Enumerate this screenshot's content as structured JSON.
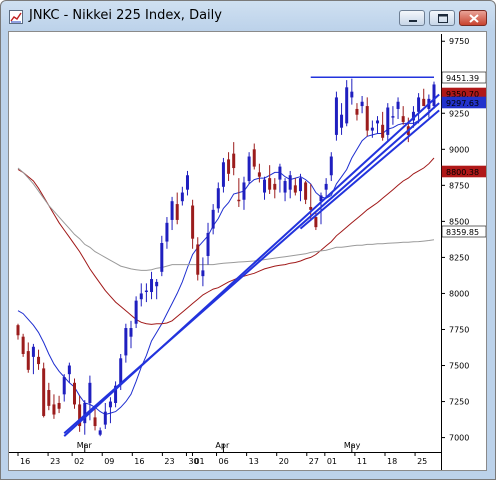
{
  "window": {
    "title": "JNKC - Nikkei 225 Index, Daily",
    "controls": [
      "minimize",
      "maximize",
      "close"
    ],
    "icons": {
      "app": "chart-app-icon"
    }
  },
  "chart_data": {
    "type": "candlestick",
    "title": "",
    "xlabel": "",
    "ylabel": "",
    "ylim": [
      6900,
      9800
    ],
    "y_ticks": [
      7000,
      7250,
      7500,
      7750,
      8000,
      8250,
      8500,
      8750,
      9000,
      9250,
      9500,
      9750
    ],
    "y_tick_labels": [
      "7000",
      "7250",
      "7500",
      "7750",
      "8000",
      "8250",
      "8500",
      "8750",
      "9000",
      "9250",
      "9500",
      "9750"
    ],
    "x_day_labels": [
      "16",
      "23",
      "02",
      "09",
      "16",
      "23",
      "30",
      "01",
      "06",
      "13",
      "20",
      "27",
      "01",
      "11",
      "18",
      "25"
    ],
    "x_month_labels": [
      {
        "label": "Mar",
        "bar": 13
      },
      {
        "label": "Apr",
        "bar": 40
      },
      {
        "label": "May",
        "bar": 65
      }
    ],
    "colors": {
      "up": "#1f1fbf",
      "down": "#9b1c1c",
      "ma_short": "#1f2fd0",
      "ma_mid": "#a01818",
      "ma_long": "#9a9a9a",
      "trend": "#2233dd",
      "resistance": "#2233dd"
    },
    "price_tags": [
      {
        "value": "9451.39",
        "bg": "#ffffff",
        "fg": "#000000"
      },
      {
        "value": "9350.70",
        "bg": "#b01818",
        "fg": "#ffffff"
      },
      {
        "value": "9297.63",
        "bg": "#2233cc",
        "fg": "#ffffff"
      },
      {
        "value": "8800.38",
        "bg": "#b01818",
        "fg": "#ffffff"
      },
      {
        "value": "8359.85",
        "bg": "#ffffff",
        "fg": "#000000"
      }
    ],
    "series": [
      {
        "name": "",
        "type": "candles",
        "ohlc": [
          [
            7780,
            7790,
            7680,
            7710
          ],
          [
            7700,
            7720,
            7560,
            7580
          ],
          [
            7600,
            7660,
            7450,
            7470
          ],
          [
            7560,
            7650,
            7440,
            7630
          ],
          [
            7560,
            7610,
            7470,
            7510
          ],
          [
            7480,
            7520,
            7140,
            7150
          ],
          [
            7330,
            7380,
            7190,
            7220
          ],
          [
            7230,
            7300,
            7130,
            7160
          ],
          [
            7240,
            7290,
            7170,
            7200
          ],
          [
            7300,
            7440,
            7250,
            7420
          ],
          [
            7440,
            7520,
            7380,
            7500
          ],
          [
            7380,
            7410,
            7200,
            7230
          ],
          [
            7230,
            7290,
            7040,
            7080
          ],
          [
            7100,
            7260,
            7020,
            7240
          ],
          [
            7240,
            7430,
            7120,
            7380
          ],
          [
            7140,
            7200,
            7050,
            7080
          ],
          [
            7020,
            7070,
            7010,
            7050
          ],
          [
            7090,
            7240,
            7060,
            7180
          ],
          [
            7210,
            7280,
            7100,
            7250
          ],
          [
            7240,
            7390,
            7210,
            7360
          ],
          [
            7370,
            7580,
            7330,
            7550
          ],
          [
            7570,
            7790,
            7520,
            7760
          ],
          [
            7700,
            7810,
            7620,
            7760
          ],
          [
            7790,
            7980,
            7760,
            7950
          ],
          [
            7960,
            8070,
            7910,
            8000
          ],
          [
            8010,
            8070,
            7940,
            8020
          ],
          [
            8010,
            8150,
            7960,
            8100
          ],
          [
            8050,
            8100,
            7960,
            8080
          ],
          [
            8150,
            8400,
            8120,
            8350
          ],
          [
            8360,
            8530,
            8310,
            8490
          ],
          [
            8510,
            8670,
            8440,
            8640
          ],
          [
            8620,
            8700,
            8480,
            8510
          ],
          [
            8640,
            8740,
            8610,
            8700
          ],
          [
            8720,
            8850,
            8680,
            8820
          ],
          [
            8610,
            8650,
            8310,
            8380
          ],
          [
            8340,
            8390,
            8090,
            8130
          ],
          [
            8120,
            8250,
            8050,
            8160
          ],
          [
            8260,
            8490,
            8200,
            8420
          ],
          [
            8450,
            8620,
            8410,
            8580
          ],
          [
            8590,
            8770,
            8560,
            8730
          ],
          [
            8740,
            8940,
            8700,
            8910
          ],
          [
            8930,
            8980,
            8780,
            8830
          ],
          [
            8970,
            9050,
            8820,
            8870
          ],
          [
            8650,
            8800,
            8600,
            8640
          ],
          [
            8650,
            8810,
            8580,
            8770
          ],
          [
            8780,
            8980,
            8760,
            8950
          ],
          [
            9000,
            9040,
            8860,
            8880
          ],
          [
            8840,
            8900,
            8770,
            8810
          ],
          [
            8700,
            8810,
            8650,
            8790
          ],
          [
            8800,
            8890,
            8690,
            8720
          ],
          [
            8760,
            8800,
            8660,
            8720
          ],
          [
            8790,
            8900,
            8700,
            8880
          ],
          [
            8700,
            8800,
            8640,
            8780
          ],
          [
            8720,
            8850,
            8660,
            8820
          ],
          [
            8750,
            8800,
            8680,
            8700
          ],
          [
            8710,
            8830,
            8640,
            8800
          ],
          [
            8770,
            8780,
            8620,
            8650
          ],
          [
            8600,
            8760,
            8510,
            8580
          ],
          [
            8530,
            8560,
            8440,
            8460
          ],
          [
            8640,
            8700,
            8480,
            8680
          ],
          [
            8720,
            8800,
            8660,
            8760
          ],
          [
            8820,
            8980,
            8780,
            8950
          ],
          [
            9100,
            9400,
            9060,
            9360
          ],
          [
            9150,
            9320,
            9100,
            9240
          ],
          [
            9180,
            9480,
            9160,
            9430
          ],
          [
            9360,
            9490,
            9310,
            9400
          ],
          [
            9280,
            9320,
            9200,
            9240
          ],
          [
            9300,
            9370,
            9250,
            9330
          ],
          [
            9300,
            9360,
            9090,
            9130
          ],
          [
            9130,
            9200,
            9080,
            9150
          ],
          [
            9180,
            9230,
            9110,
            9200
          ],
          [
            9170,
            9260,
            9060,
            9080
          ],
          [
            9100,
            9320,
            9060,
            9290
          ],
          [
            9220,
            9300,
            9170,
            9230
          ],
          [
            9280,
            9360,
            9210,
            9330
          ],
          [
            9230,
            9300,
            9170,
            9190
          ],
          [
            9160,
            9220,
            9050,
            9100
          ],
          [
            9200,
            9300,
            9150,
            9260
          ],
          [
            9260,
            9390,
            9180,
            9360
          ],
          [
            9350,
            9420,
            9300,
            9300
          ],
          [
            9280,
            9380,
            9220,
            9350
          ],
          [
            9300,
            9470,
            9280,
            9450
          ]
        ]
      },
      {
        "name": "",
        "type": "ma_short",
        "values": [
          7880,
          7860,
          7820,
          7780,
          7730,
          7660,
          7580,
          7510,
          7460,
          7420,
          7380,
          7350,
          7290,
          7240,
          7230,
          7210,
          7180,
          7160,
          7170,
          7180,
          7210,
          7250,
          7300,
          7390,
          7490,
          7570,
          7670,
          7730,
          7790,
          7860,
          7930,
          8000,
          8080,
          8180,
          8270,
          8320,
          8360,
          8400,
          8470,
          8520,
          8590,
          8630,
          8690,
          8700,
          8710,
          8760,
          8790,
          8800,
          8800,
          8820,
          8840,
          8840,
          8810,
          8790,
          8800,
          8810,
          8790,
          8760,
          8700,
          8670,
          8660,
          8680,
          8760,
          8810,
          8860,
          8940,
          9000,
          9060,
          9090,
          9100,
          9110,
          9110,
          9140,
          9150,
          9170,
          9180,
          9180,
          9180,
          9200,
          9220,
          9250,
          9290
        ]
      },
      {
        "name": "",
        "type": "ma_mid",
        "values": [
          8860,
          8840,
          8810,
          8780,
          8730,
          8670,
          8610,
          8550,
          8490,
          8440,
          8390,
          8340,
          8290,
          8230,
          8170,
          8120,
          8070,
          8020,
          7980,
          7940,
          7910,
          7880,
          7850,
          7820,
          7800,
          7790,
          7785,
          7790,
          7790,
          7795,
          7810,
          7840,
          7870,
          7900,
          7930,
          7960,
          7990,
          8010,
          8030,
          8040,
          8060,
          8080,
          8095,
          8110,
          8120,
          8130,
          8140,
          8155,
          8170,
          8180,
          8190,
          8195,
          8200,
          8210,
          8215,
          8225,
          8240,
          8250,
          8270,
          8300,
          8330,
          8360,
          8400,
          8430,
          8460,
          8490,
          8520,
          8550,
          8580,
          8605,
          8630,
          8660,
          8690,
          8720,
          8750,
          8780,
          8800,
          8830,
          8850,
          8870,
          8900,
          8940
        ]
      },
      {
        "name": "",
        "type": "ma_long",
        "values": [
          8870,
          8840,
          8800,
          8760,
          8710,
          8660,
          8610,
          8570,
          8530,
          8490,
          8450,
          8410,
          8380,
          8340,
          8320,
          8290,
          8270,
          8250,
          8230,
          8210,
          8190,
          8180,
          8170,
          8165,
          8160,
          8160,
          8165,
          8175,
          8180,
          8190,
          8200,
          8200,
          8200,
          8200,
          8200,
          8200,
          8200,
          8200,
          8200,
          8205,
          8210,
          8212,
          8215,
          8218,
          8220,
          8222,
          8225,
          8230,
          8235,
          8240,
          8245,
          8250,
          8255,
          8260,
          8265,
          8270,
          8275,
          8285,
          8290,
          8295,
          8300,
          8310,
          8320,
          8320,
          8325,
          8330,
          8335,
          8335,
          8340,
          8340,
          8345,
          8345,
          8348,
          8350,
          8352,
          8355,
          8355,
          8358,
          8360,
          8363,
          8367,
          8373
        ]
      }
    ],
    "trendlines": [
      {
        "name": "",
        "from": [
          9,
          7010
        ],
        "to": [
          82,
          9380
        ]
      },
      {
        "name": "",
        "from": [
          9,
          7030
        ],
        "to": [
          82,
          9320
        ]
      },
      {
        "name": "",
        "from": [
          55,
          8450
        ],
        "to": [
          82,
          9270
        ]
      }
    ],
    "resistance": {
      "name": "",
      "value": 9500,
      "from_bar": 57,
      "to_bar": 81
    }
  }
}
